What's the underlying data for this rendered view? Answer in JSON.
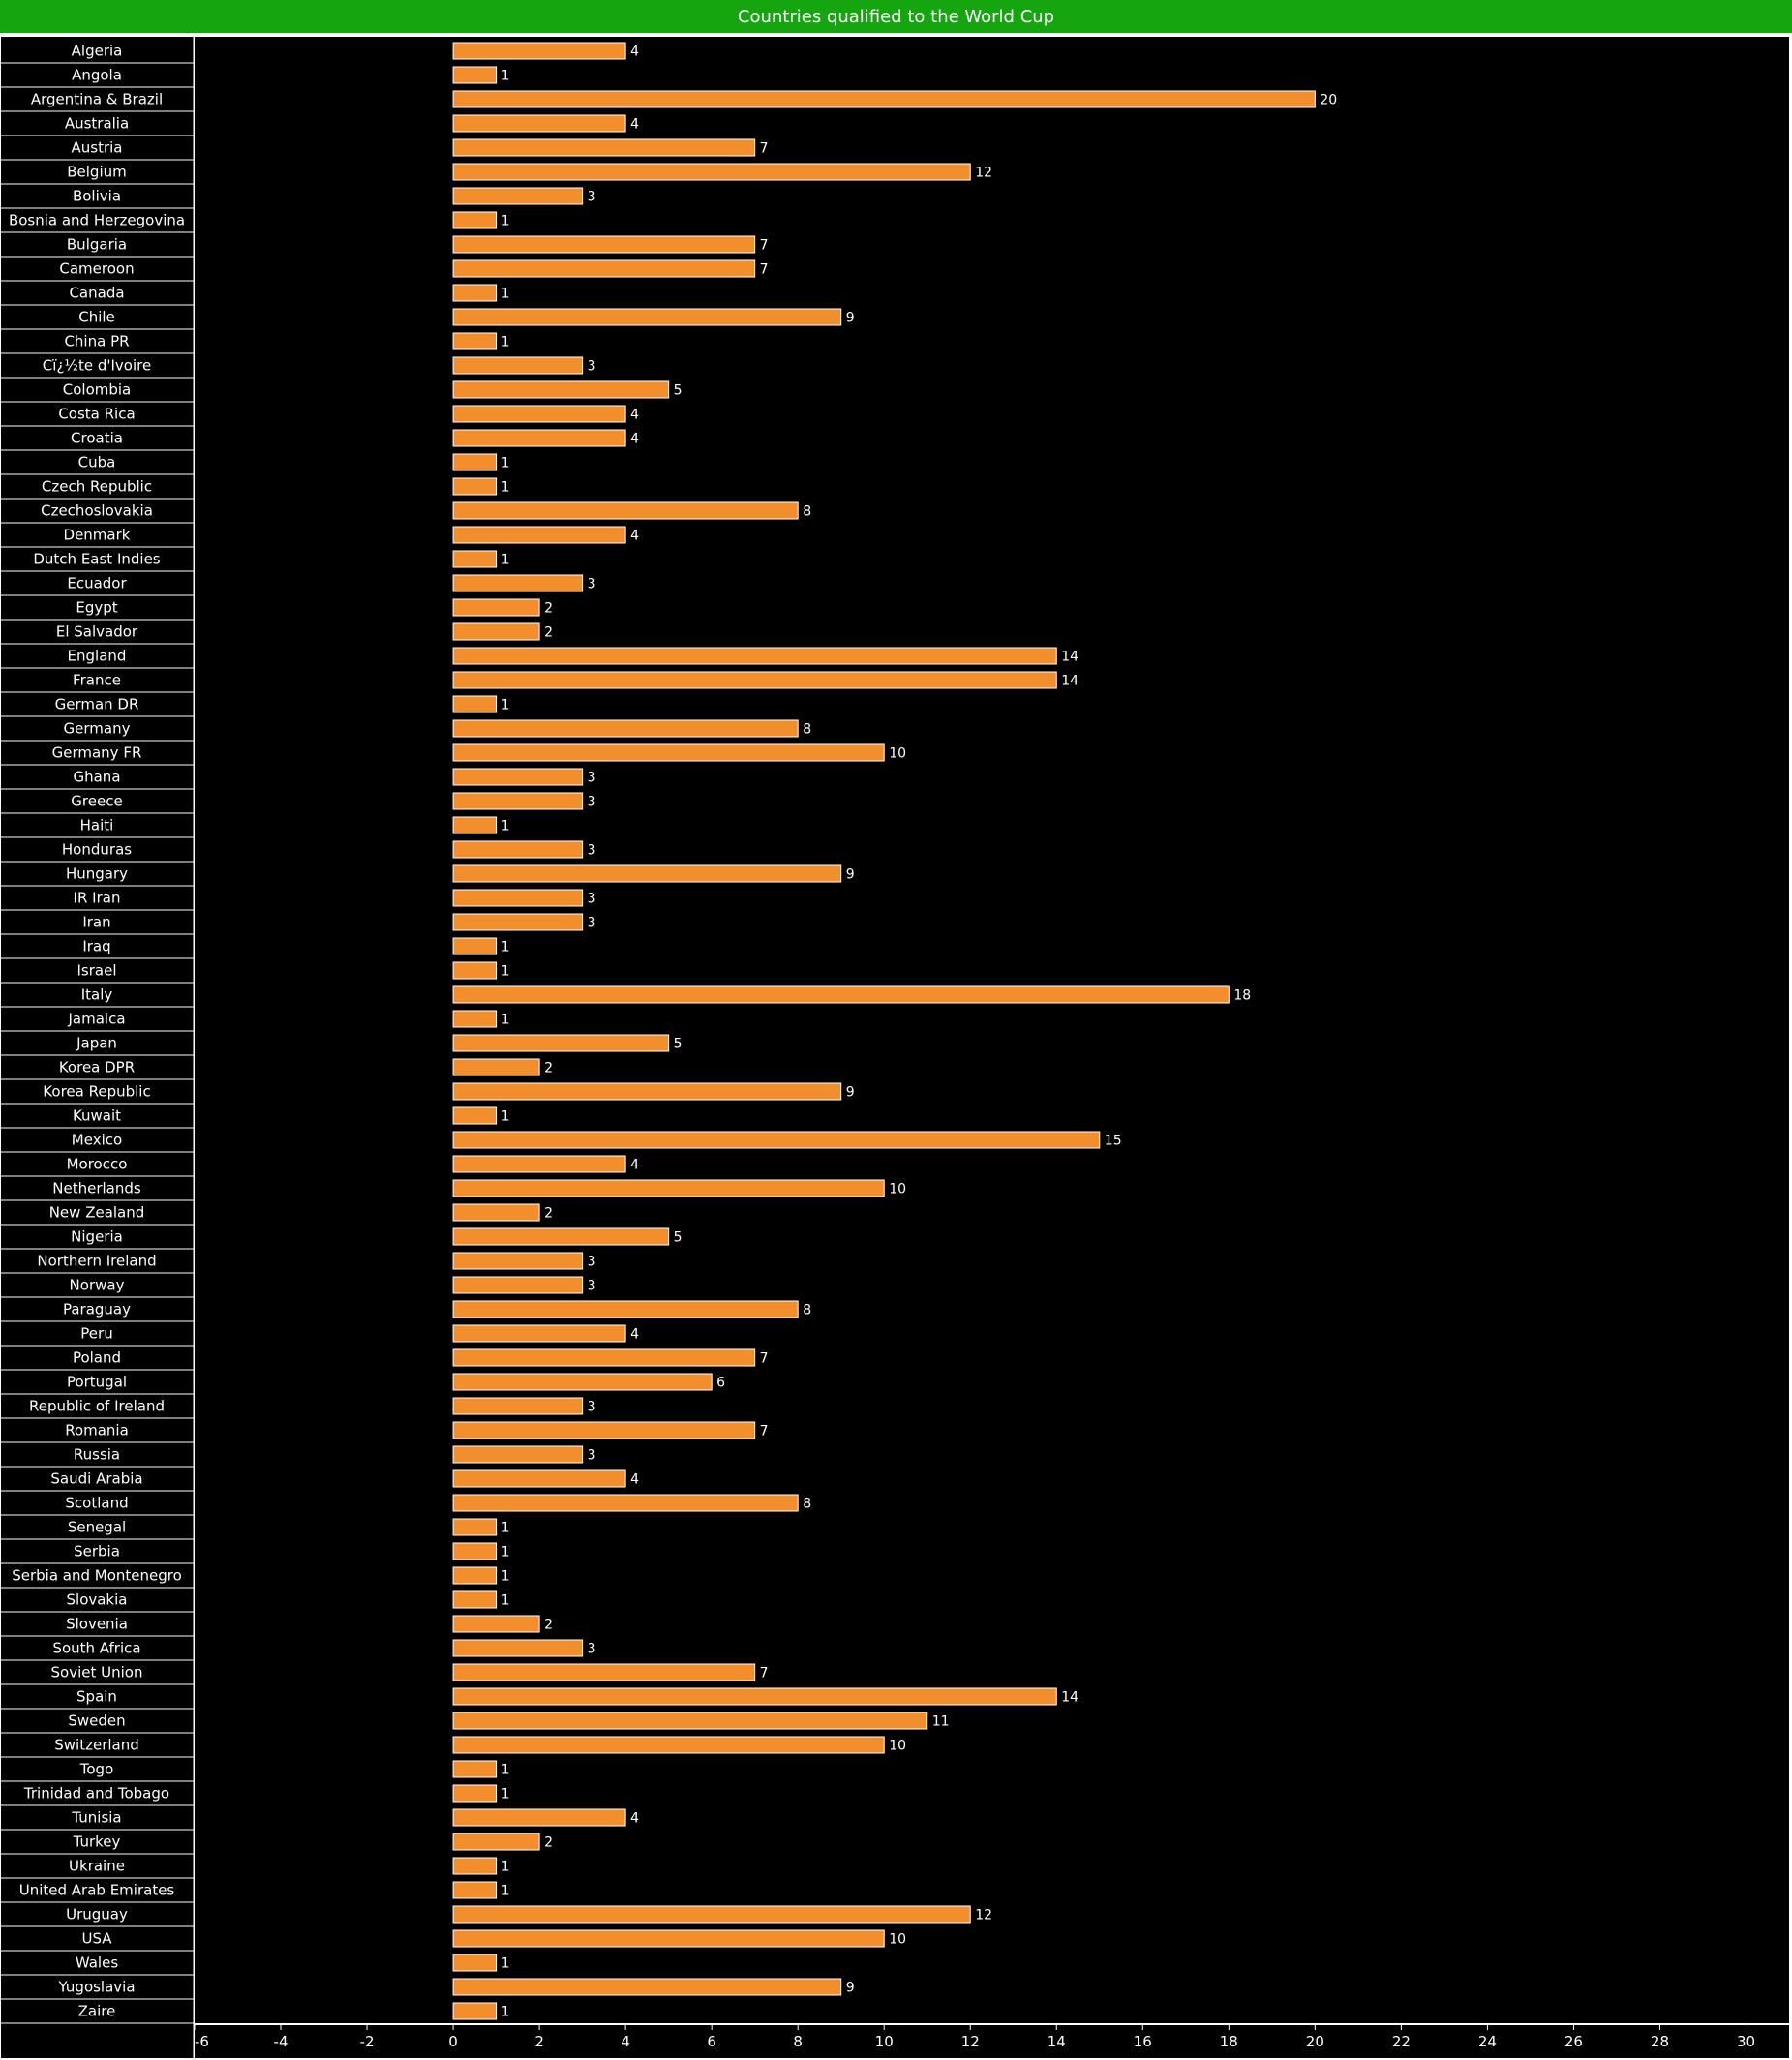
{
  "chart_data": {
    "type": "bar",
    "orientation": "horizontal",
    "title": "Countries qualified to the World Cup",
    "xlim": [
      -6,
      31
    ],
    "xticks": [
      -6,
      -4,
      -2,
      0,
      2,
      4,
      6,
      8,
      10,
      12,
      14,
      16,
      18,
      20,
      22,
      24,
      26,
      28,
      30
    ],
    "grid": false,
    "colors": {
      "bar": "#f28e2b",
      "bar_border": "#ffffff",
      "plot_background": "#000000",
      "label_background": "#000000",
      "title_background": "#14a50f",
      "text": "#ffffff"
    },
    "categories": [
      "Algeria",
      "Angola",
      "Argentina & Brazil",
      "Australia",
      "Austria",
      "Belgium",
      "Bolivia",
      "Bosnia and Herzegovina",
      "Bulgaria",
      "Cameroon",
      "Canada",
      "Chile",
      "China PR",
      "Cï¿½te d'Ivoire",
      "Colombia",
      "Costa Rica",
      "Croatia",
      "Cuba",
      "Czech Republic",
      "Czechoslovakia",
      "Denmark",
      "Dutch East Indies",
      "Ecuador",
      "Egypt",
      "El Salvador",
      "England",
      "France",
      "German DR",
      "Germany",
      "Germany FR",
      "Ghana",
      "Greece",
      "Haiti",
      "Honduras",
      "Hungary",
      "IR Iran",
      "Iran",
      "Iraq",
      "Israel",
      "Italy",
      "Jamaica",
      "Japan",
      "Korea DPR",
      "Korea Republic",
      "Kuwait",
      "Mexico",
      "Morocco",
      "Netherlands",
      "New Zealand",
      "Nigeria",
      "Northern Ireland",
      "Norway",
      "Paraguay",
      "Peru",
      "Poland",
      "Portugal",
      "Republic of Ireland",
      "Romania",
      "Russia",
      "Saudi Arabia",
      "Scotland",
      "Senegal",
      "Serbia",
      "Serbia and Montenegro",
      "Slovakia",
      "Slovenia",
      "South Africa",
      "Soviet Union",
      "Spain",
      "Sweden",
      "Switzerland",
      "Togo",
      "Trinidad and Tobago",
      "Tunisia",
      "Turkey",
      "Ukraine",
      "United Arab Emirates",
      "Uruguay",
      "USA",
      "Wales",
      "Yugoslavia",
      "Zaire"
    ],
    "values": [
      4,
      1,
      20,
      4,
      7,
      12,
      3,
      1,
      7,
      7,
      1,
      9,
      1,
      3,
      5,
      4,
      4,
      1,
      1,
      8,
      4,
      1,
      3,
      2,
      2,
      14,
      14,
      1,
      8,
      10,
      3,
      3,
      1,
      3,
      9,
      3,
      3,
      1,
      1,
      18,
      1,
      5,
      2,
      9,
      1,
      15,
      4,
      10,
      2,
      5,
      3,
      3,
      8,
      4,
      7,
      6,
      3,
      7,
      3,
      4,
      8,
      1,
      1,
      1,
      1,
      2,
      3,
      7,
      14,
      11,
      10,
      1,
      1,
      4,
      2,
      1,
      1,
      12,
      10,
      1,
      9,
      1
    ]
  }
}
